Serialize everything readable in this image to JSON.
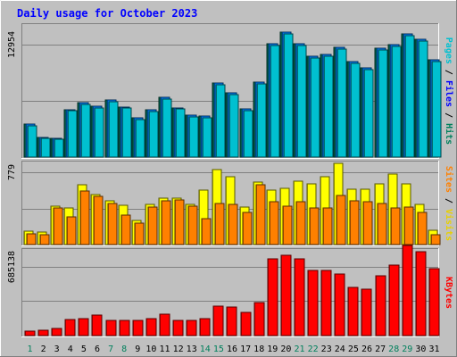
{
  "chart_data": {
    "type": "bar",
    "title": "Daily usage for October 2023",
    "categories": [
      "1",
      "2",
      "3",
      "4",
      "5",
      "6",
      "7",
      "8",
      "9",
      "10",
      "11",
      "12",
      "13",
      "14",
      "15",
      "16",
      "17",
      "18",
      "19",
      "20",
      "21",
      "22",
      "23",
      "24",
      "25",
      "26",
      "27",
      "28",
      "29",
      "30",
      "31"
    ],
    "weekend_days": [
      "1",
      "7",
      "8",
      "14",
      "15",
      "21",
      "22",
      "28",
      "29"
    ],
    "panels": [
      {
        "ylabel_parts": [
          "Pages",
          "Files",
          "Hits"
        ],
        "ytick": 12954,
        "ymax": 15200,
        "series": [
          {
            "name": "Hits",
            "color": "#00805c",
            "values": [
              3800,
              2300,
              2200,
              5400,
              6300,
              5900,
              6600,
              5800,
              4500,
              5400,
              6900,
              5700,
              4800,
              4700,
              8500,
              7400,
              5500,
              8600,
              13000,
              14400,
              13000,
              11600,
              11800,
              12600,
              11000,
              10300,
              12500,
              12900,
              14200,
              13600,
              11200
            ]
          },
          {
            "name": "Files",
            "color": "#0080ff",
            "values": [
              3800,
              2300,
              2200,
              5400,
              6300,
              5900,
              6600,
              5800,
              4500,
              5400,
              6900,
              5700,
              4800,
              4700,
              8500,
              7400,
              5500,
              8600,
              13000,
              14400,
              13000,
              11600,
              11800,
              12600,
              11000,
              10300,
              12500,
              12900,
              14200,
              13600,
              11200
            ]
          },
          {
            "name": "Pages",
            "color": "#00c0d0",
            "values": [
              3600,
              2200,
              2100,
              5300,
              6100,
              5700,
              6400,
              5600,
              4300,
              5200,
              6700,
              5500,
              4600,
              4500,
              8300,
              7200,
              5300,
              8400,
              12800,
              14200,
              12800,
              11400,
              11600,
              12400,
              10800,
              10100,
              12300,
              12700,
              14000,
              13400,
              11000
            ]
          }
        ]
      },
      {
        "ylabel_parts": [
          "Sites",
          "Visits"
        ],
        "ytick": 779,
        "ymax": 885,
        "series": [
          {
            "name": "Visits",
            "color": "#ffff00",
            "values": [
              140,
              130,
              410,
              390,
              640,
              540,
              470,
              420,
              260,
              430,
              500,
              500,
              430,
              590,
              810,
              730,
              400,
              670,
              590,
              610,
              680,
              650,
              730,
              880,
              600,
              600,
              650,
              760,
              650,
              430,
              150
            ]
          },
          {
            "name": "Sites",
            "color": "#ff8000",
            "values": [
              120,
              110,
              390,
              300,
              580,
              520,
              440,
              320,
              230,
              400,
              470,
              480,
              410,
              280,
              440,
              430,
              350,
              640,
              460,
              410,
              460,
              390,
              390,
              530,
              470,
              460,
              440,
              390,
              400,
              350,
              110
            ]
          }
        ]
      },
      {
        "ylabel_parts": [
          "KBytes"
        ],
        "ytick": 685138,
        "ymax": 850000,
        "series": [
          {
            "name": "KBytes",
            "color": "#ff0000",
            "values": [
              40000,
              50000,
              70000,
              160000,
              170000,
              200000,
              150000,
              150000,
              150000,
              170000,
              210000,
              150000,
              150000,
              170000,
              290000,
              280000,
              230000,
              330000,
              760000,
              800000,
              760000,
              650000,
              650000,
              610000,
              480000,
              460000,
              590000,
              700000,
              890000,
              830000,
              660000
            ]
          }
        ]
      }
    ]
  }
}
